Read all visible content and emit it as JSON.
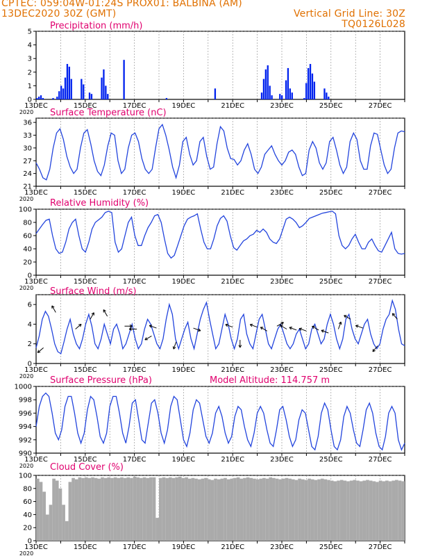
{
  "header": {
    "line1_left": "CPTEC:  059:04W-01:24S  PROX01: BALBINA (AM)",
    "line2_left": "13DEC2020 30Z (GMT)",
    "line2_right": "Vertical Grid Line: 30Z",
    "line3_right": "TQ0126L028"
  },
  "x_axis": {
    "labels": [
      "13DEC",
      "15DEC",
      "17DEC",
      "19DEC",
      "21DEC",
      "23DEC",
      "25DEC",
      "27DEC"
    ],
    "year_label": "2020",
    "days": 15
  },
  "chart_data": [
    {
      "type": "bar",
      "title": "Precipitation (mm/h)",
      "ylim": [
        0,
        5
      ],
      "yticks": [
        0,
        1,
        2,
        3,
        4,
        5
      ],
      "color": "#0022ee",
      "series": [
        {
          "values": [
            0.1,
            0.2,
            0.3,
            0.1,
            0,
            0,
            0,
            0,
            0.1,
            0,
            0.2,
            0.6,
            1.0,
            0.8,
            1.6,
            2.6,
            2.4,
            1.5,
            0,
            0,
            0,
            0,
            1.5,
            1.1,
            0,
            0,
            0.5,
            0.4,
            0,
            0,
            0,
            0,
            1.6,
            2.2,
            1.0,
            0.4,
            0,
            0,
            0,
            0,
            0,
            0,
            0,
            2.9,
            0,
            0,
            0,
            0,
            0,
            0,
            0,
            0,
            0,
            0,
            0,
            0,
            0,
            0,
            0,
            0,
            0,
            0,
            0,
            0,
            0.1,
            0,
            0,
            0,
            0,
            0,
            0,
            0,
            0,
            0,
            0,
            0,
            0,
            0,
            0,
            0,
            0,
            0,
            0,
            0,
            0,
            0,
            0,
            0,
            0.8,
            0,
            0,
            0,
            0,
            0,
            0,
            0,
            0,
            0,
            0,
            0,
            0,
            0,
            0,
            0,
            0,
            0,
            0,
            0,
            0,
            0,
            0,
            0.5,
            1.5,
            2.2,
            2.5,
            1.0,
            0.3,
            0,
            0,
            0,
            0.4,
            0.3,
            0,
            1.4,
            2.3,
            0.8,
            0.5,
            0,
            0,
            0,
            0,
            0,
            0.1,
            1.2,
            2.3,
            2.6,
            1.9,
            1.3,
            0,
            0,
            0,
            0,
            0.8,
            0.5,
            0.2,
            0,
            0,
            0,
            0,
            0,
            0,
            0,
            0,
            0,
            0,
            0,
            0,
            0,
            0,
            0,
            0,
            0,
            0,
            0,
            0,
            0,
            0,
            0,
            0,
            0,
            0,
            0,
            0,
            0,
            0,
            0,
            0,
            0,
            0,
            0,
            0,
            0
          ]
        }
      ]
    },
    {
      "type": "line",
      "title": "Surface Temperature (nC)",
      "ylim": [
        21,
        37
      ],
      "yticks": [
        21,
        24,
        27,
        30,
        33,
        36
      ],
      "color": "#2244dd",
      "series": [
        {
          "values": [
            26.5,
            25,
            23,
            22.5,
            25,
            30,
            33.5,
            34.5,
            32,
            28,
            25.5,
            24,
            25,
            30,
            33.5,
            34.3,
            31,
            27,
            24.5,
            23.5,
            26,
            30.5,
            33.5,
            33,
            27,
            24,
            25,
            30,
            33,
            33.5,
            31.5,
            27.5,
            25,
            24,
            25,
            30,
            34.5,
            35.5,
            33,
            29.5,
            25.5,
            23,
            26,
            31.5,
            32.5,
            28.5,
            26,
            27,
            31.5,
            32.5,
            28,
            25,
            25.5,
            31,
            35,
            34,
            30,
            27.5,
            27.3,
            26,
            27,
            29.5,
            31,
            28.5,
            25,
            24,
            25.5,
            28.5,
            29.5,
            30.5,
            28.5,
            27,
            26,
            27,
            29,
            29.5,
            28.5,
            25.5,
            23.5,
            24,
            29.5,
            31.5,
            30,
            26.5,
            25,
            26.5,
            31.5,
            32.5,
            29.5,
            26,
            24,
            25.5,
            31.5,
            33.5,
            32,
            27,
            25,
            25,
            30.5,
            33.5,
            33.2,
            29.5,
            26,
            24,
            25,
            30,
            33.5,
            34,
            33.8
          ]
        }
      ]
    },
    {
      "type": "line",
      "title": "Relative Humidity (%)",
      "ylim": [
        0,
        100
      ],
      "yticks": [
        0,
        20,
        40,
        60,
        80,
        100
      ],
      "color": "#2244dd",
      "series": [
        {
          "values": [
            63,
            70,
            77,
            83,
            85,
            60,
            40,
            33,
            35,
            50,
            70,
            80,
            85,
            60,
            40,
            35,
            50,
            70,
            80,
            84,
            88,
            95,
            97,
            95,
            50,
            35,
            40,
            60,
            80,
            88,
            60,
            45,
            45,
            60,
            72,
            80,
            90,
            92,
            80,
            55,
            33,
            26,
            30,
            45,
            60,
            75,
            85,
            88,
            90,
            93,
            70,
            50,
            40,
            40,
            55,
            75,
            86,
            90,
            82,
            60,
            42,
            38,
            45,
            52,
            55,
            60,
            62,
            68,
            65,
            70,
            65,
            55,
            50,
            48,
            55,
            70,
            85,
            88,
            85,
            80,
            72,
            75,
            80,
            86,
            88,
            90,
            92,
            94,
            95,
            96,
            97,
            93,
            60,
            45,
            40,
            45,
            55,
            62,
            50,
            40,
            40,
            50,
            55,
            45,
            37,
            35,
            45,
            55,
            65,
            40,
            33,
            32,
            33
          ]
        }
      ]
    },
    {
      "type": "line",
      "title": "Surface Wind (m/s)",
      "ylim": [
        0,
        7
      ],
      "yticks": [
        0,
        2,
        4,
        6
      ],
      "color": "#2244dd",
      "series": [
        {
          "values": [
            1.6,
            2.8,
            4.5,
            5.3,
            4.8,
            3.5,
            2.0,
            1.2,
            1.0,
            2.2,
            3.5,
            4.5,
            3.0,
            2.0,
            1.5,
            2.5,
            4.0,
            5.0,
            3.8,
            2.0,
            1.5,
            2.5,
            4.0,
            3.0,
            2.0,
            3.5,
            4.0,
            3.0,
            1.5,
            2.0,
            3.0,
            4.0,
            2.5,
            1.5,
            2.0,
            3.5,
            4.5,
            4.0,
            3.0,
            2.0,
            1.5,
            2.5,
            4.5,
            6.0,
            5.0,
            2.5,
            1.5,
            2.5,
            3.5,
            4.2,
            2.5,
            1.5,
            3.0,
            4.5,
            5.5,
            6.2,
            4.5,
            3.0,
            1.5,
            2.0,
            3.5,
            5.0,
            4.0,
            2.5,
            1.5,
            2.5,
            4.5,
            5.0,
            3.0,
            2.0,
            1.5,
            3.0,
            4.5,
            5.0,
            3.5,
            2.0,
            1.5,
            2.5,
            3.5,
            4.0,
            3.0,
            2.0,
            1.5,
            2.0,
            3.0,
            3.5,
            2.5,
            1.5,
            2.0,
            3.5,
            4.0,
            3.0,
            2.0,
            2.5,
            4.0,
            5.0,
            4.0,
            2.5,
            1.5,
            2.5,
            4.5,
            5.0,
            3.5,
            2.5,
            2.0,
            3.0,
            4.0,
            4.5,
            3.0,
            2.0,
            1.5,
            2.0,
            3.5,
            4.5,
            5.0,
            6.4,
            5.5,
            3.5,
            2.0,
            1.8
          ]
        }
      ]
    },
    {
      "type": "line",
      "title": "Surface Pressure (hPa)",
      "subtitle": "Model Altitude: 114.757 m",
      "ylim": [
        990,
        1000
      ],
      "yticks": [
        990,
        992,
        994,
        996,
        998,
        1000
      ],
      "color": "#2244dd",
      "series": [
        {
          "values": [
            994,
            997,
            998.5,
            999,
            998.5,
            996,
            993,
            992,
            993.5,
            997,
            998.5,
            998.5,
            996,
            993,
            991.5,
            993,
            996.5,
            998.5,
            998,
            995.5,
            992.5,
            991.5,
            993,
            997,
            998.5,
            998.5,
            996,
            993,
            991.5,
            994,
            997.5,
            998,
            995,
            992,
            991.5,
            994.5,
            997.5,
            998,
            996,
            993,
            991.5,
            993.5,
            997,
            998.5,
            998,
            995,
            992,
            991,
            993,
            996.5,
            998,
            997.5,
            995,
            992.5,
            991.5,
            993,
            996,
            997,
            995.5,
            993,
            991.5,
            992.5,
            995.5,
            997,
            996.5,
            994,
            992,
            991,
            993,
            996,
            997,
            996,
            993.5,
            991.5,
            991,
            993.5,
            996.5,
            997,
            995,
            992.5,
            991,
            992,
            995,
            996.5,
            996,
            993.5,
            991,
            990.5,
            992.5,
            996,
            997.5,
            996.5,
            993.5,
            991,
            990.5,
            992,
            995.5,
            997,
            996,
            993.5,
            991.5,
            991,
            993.5,
            996.5,
            997.5,
            996,
            993,
            991,
            990.5,
            992.5,
            996,
            997,
            996,
            992,
            990.5,
            991.5
          ]
        }
      ]
    },
    {
      "type": "bar",
      "title": "Cloud Cover (%)",
      "ylim": [
        0,
        100
      ],
      "yticks": [
        0,
        20,
        40,
        60,
        80,
        100
      ],
      "color": "#aaaaaa",
      "series": [
        {
          "values": [
            95,
            90,
            75,
            40,
            55,
            95,
            92,
            80,
            55,
            30,
            90,
            96,
            94,
            97,
            96,
            97,
            96,
            97,
            96,
            95,
            97,
            96,
            97,
            96,
            97,
            96,
            97,
            96,
            97,
            96,
            98,
            97,
            96,
            97,
            96,
            97,
            97,
            35,
            96,
            97,
            96,
            97,
            96,
            97,
            98,
            96,
            97,
            95,
            96,
            95,
            94,
            95,
            96,
            94,
            93,
            95,
            94,
            95,
            96,
            94,
            95,
            96,
            97,
            95,
            96,
            97,
            96,
            95,
            94,
            95,
            96,
            95,
            97,
            96,
            95,
            94,
            95,
            96,
            95,
            94,
            93,
            95,
            94,
            93,
            95,
            94,
            93,
            94,
            95,
            94,
            93,
            92,
            91,
            92,
            93,
            92,
            91,
            92,
            93,
            92,
            91,
            92,
            93,
            92,
            91,
            90,
            92,
            91,
            92,
            91,
            92,
            93,
            92,
            91
          ]
        }
      ]
    }
  ],
  "wind_arrows": [
    {
      "day": 0.3,
      "val": 1.6,
      "dir": 230
    },
    {
      "day": 0.8,
      "val": 5.2,
      "dir": 330
    },
    {
      "day": 1.6,
      "val": 3.5,
      "dir": 50
    },
    {
      "day": 2.2,
      "val": 4.5,
      "dir": 30
    },
    {
      "day": 2.9,
      "val": 4.8,
      "dir": 330
    },
    {
      "day": 3.6,
      "val": 3.8,
      "dir": 90
    },
    {
      "day": 4.1,
      "val": 3.5,
      "dir": 270
    },
    {
      "day": 4.7,
      "val": 2.8,
      "dir": 240
    },
    {
      "day": 4.9,
      "val": 3.6,
      "dir": 290
    },
    {
      "day": 5.7,
      "val": 2.2,
      "dir": 200
    },
    {
      "day": 6.4,
      "val": 3.6,
      "dir": 110
    },
    {
      "day": 8.0,
      "val": 3.7,
      "dir": 290
    },
    {
      "day": 8.3,
      "val": 2.4,
      "dir": 180
    },
    {
      "day": 9.0,
      "val": 3.7,
      "dir": 290
    },
    {
      "day": 9.4,
      "val": 3.3,
      "dir": 300
    },
    {
      "day": 9.8,
      "val": 3.8,
      "dir": 60
    },
    {
      "day": 10.2,
      "val": 3.5,
      "dir": 300
    },
    {
      "day": 10.6,
      "val": 3.4,
      "dir": 290
    },
    {
      "day": 11.0,
      "val": 3.3,
      "dir": 290
    },
    {
      "day": 11.5,
      "val": 3.4,
      "dir": 300
    },
    {
      "day": 11.9,
      "val": 3.1,
      "dir": 290
    },
    {
      "day": 12.3,
      "val": 3.5,
      "dir": 20
    },
    {
      "day": 12.8,
      "val": 4.5,
      "dir": 300
    },
    {
      "day": 13.3,
      "val": 3.6,
      "dir": 290
    },
    {
      "day": 13.9,
      "val": 1.8,
      "dir": 220
    },
    {
      "day": 14.7,
      "val": 4.5,
      "dir": 320
    }
  ]
}
